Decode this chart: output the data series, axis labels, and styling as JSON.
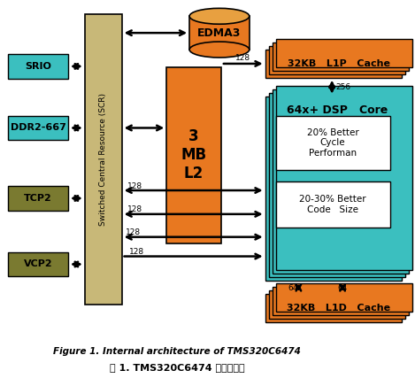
{
  "title_en": "Figure 1. Internal architecture of TMS320C6474",
  "title_cn": "图 1. TMS320C6474 的内部架构",
  "bg_color": "#ffffff",
  "colors": {
    "cyan": "#3BBFBF",
    "olive": "#7A7A30",
    "orange": "#E87820",
    "orange_top": "#E8A040",
    "tan": "#C8B878",
    "white": "#ffffff",
    "black": "#000000"
  },
  "scr_label": "Switched Central Resource (SCR)",
  "l2_label": "3\nMB\nL2",
  "edma3_label": "EDMA3",
  "l1p_label": "32KB   L1P   Cache",
  "l1d_label": "32KB   L1D   Cache",
  "dsp_label": "64x+ DSP   Core",
  "box1_label": "20% Better\nCycle\nPerforman",
  "box2_label": "20-30% Better\nCode   Size",
  "left_labels": [
    "SRIO",
    "DDR2-667",
    "TCP2",
    "VCP2"
  ],
  "left_colors": [
    "#3BBFBF",
    "#3BBFBF",
    "#7A7A30",
    "#7A7A30"
  ]
}
